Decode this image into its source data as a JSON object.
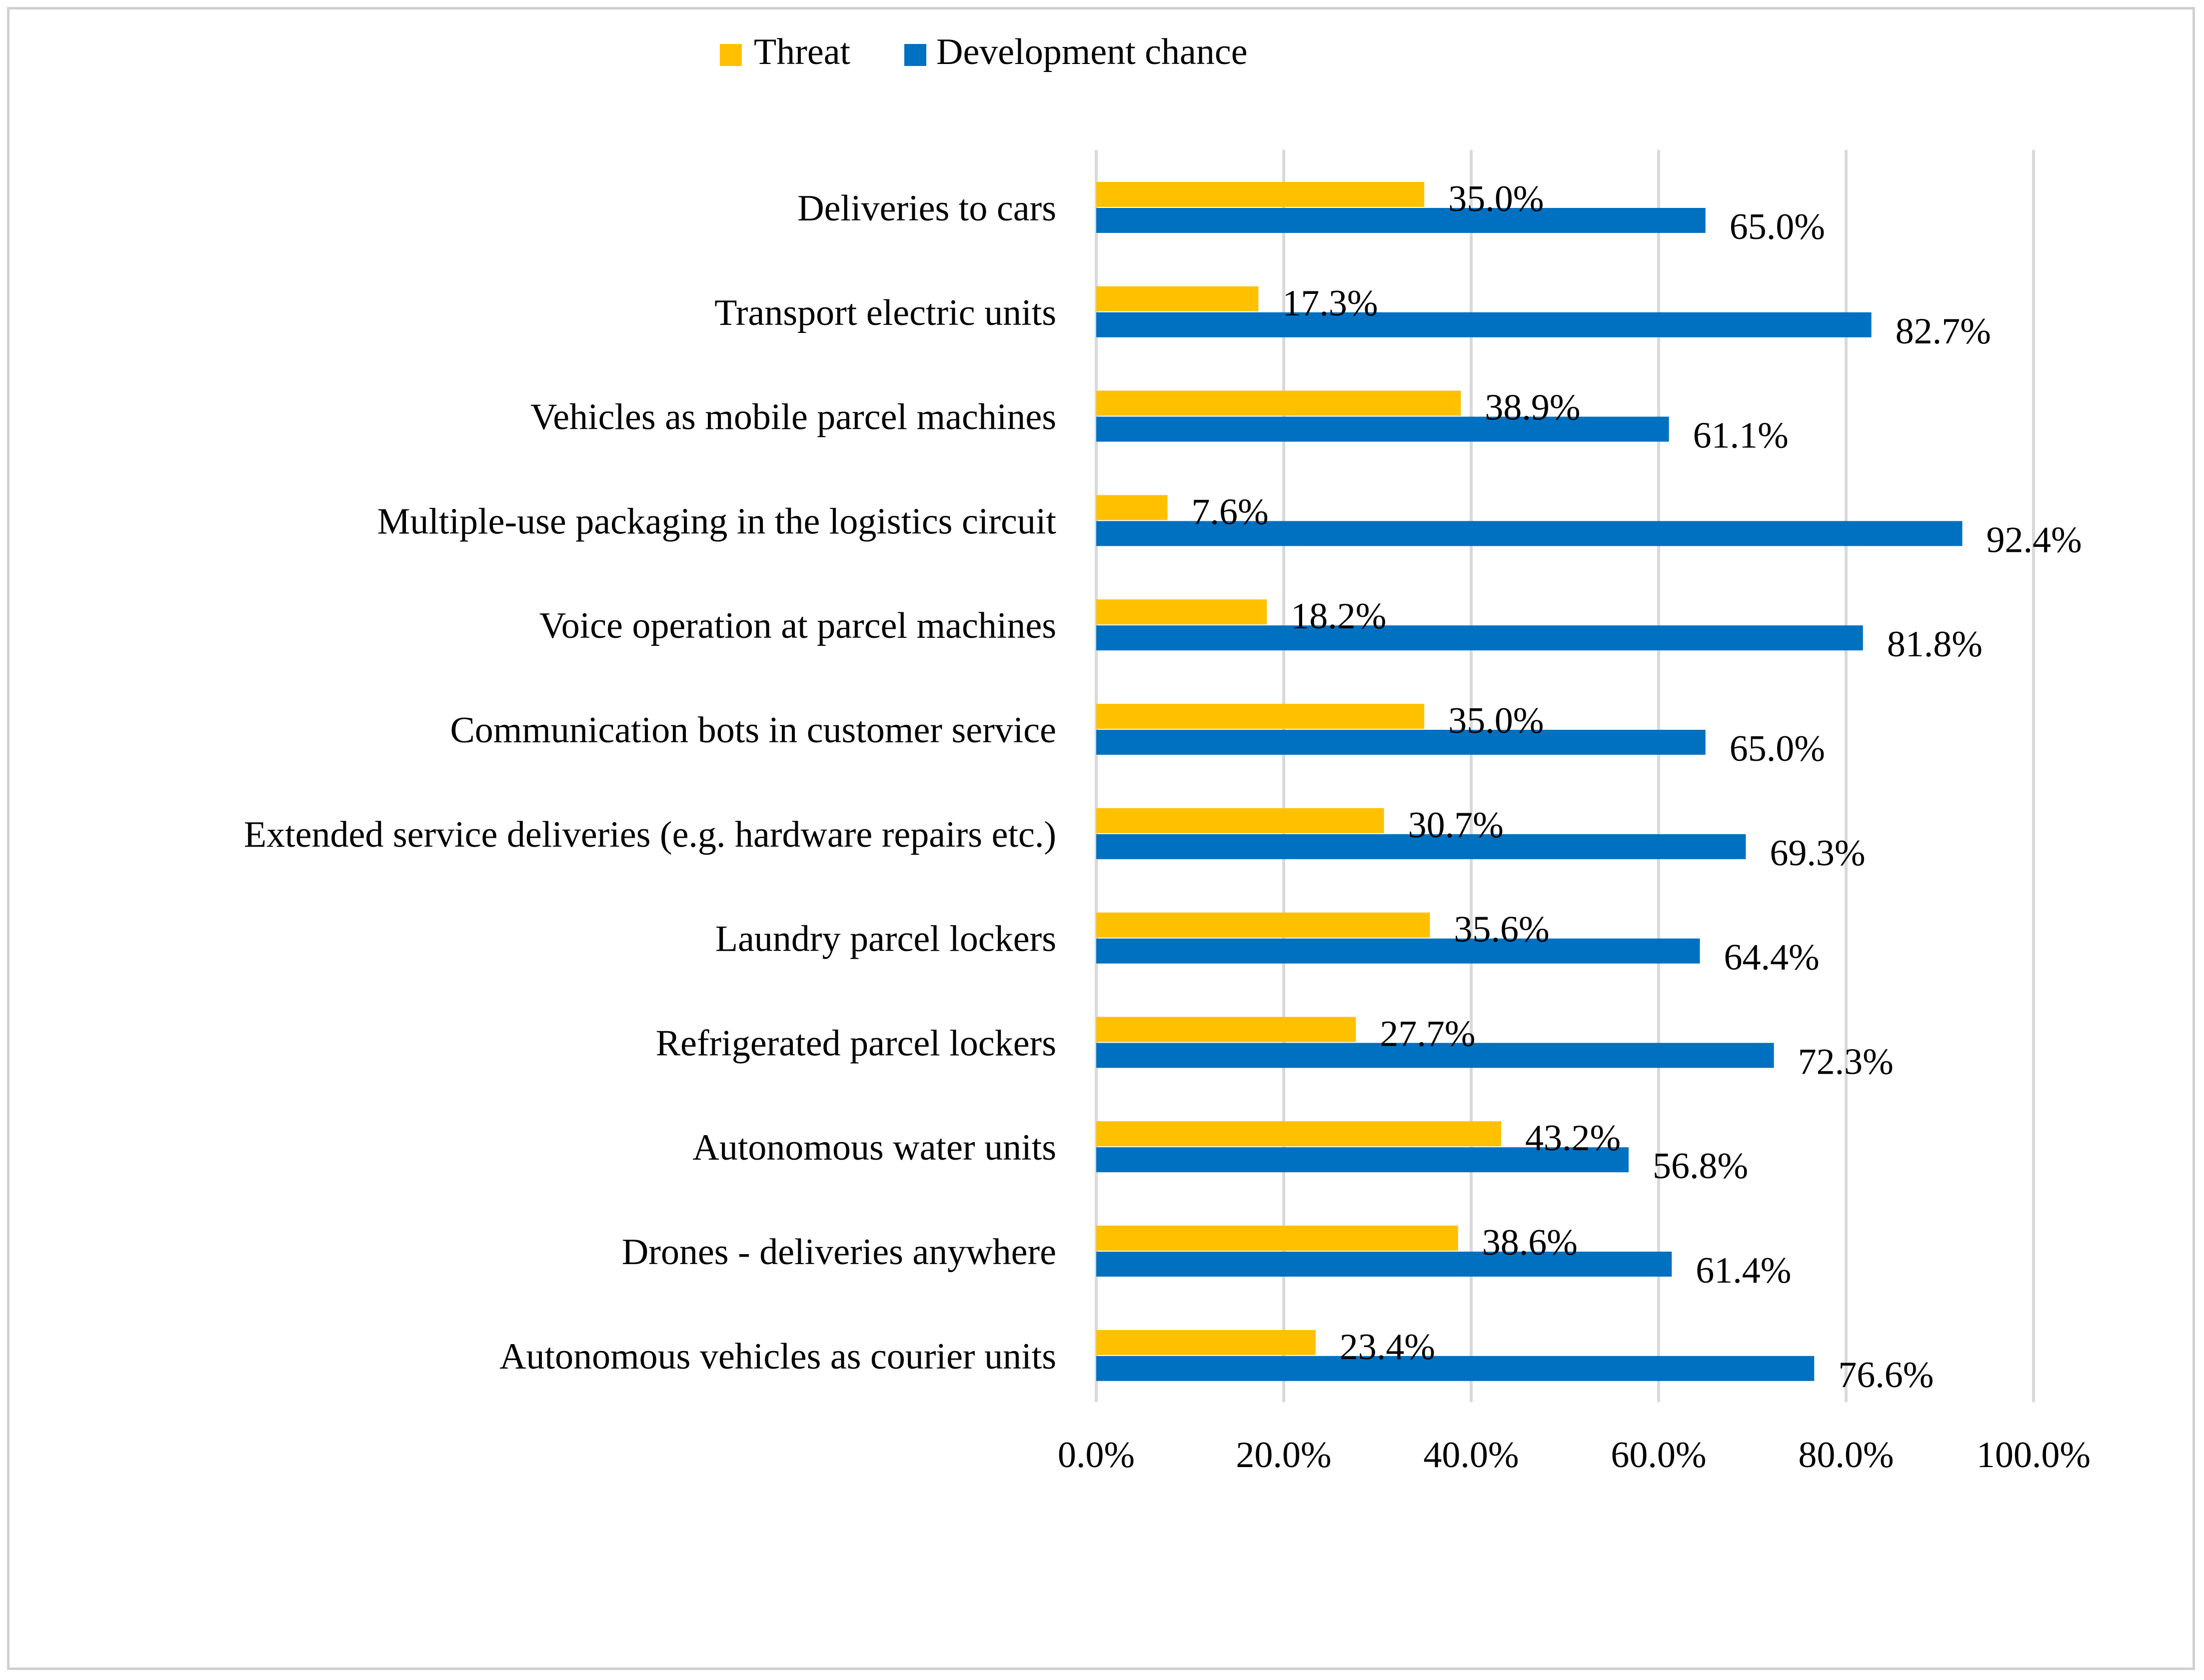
{
  "chart_data": {
    "type": "bar",
    "orientation": "horizontal",
    "title": "",
    "xlabel": "",
    "ylabel": "",
    "xlim": [
      0,
      100
    ],
    "x_ticks": [
      "0.0%",
      "20.0%",
      "40.0%",
      "60.0%",
      "80.0%",
      "100.0%"
    ],
    "x_tick_values": [
      0,
      20,
      40,
      60,
      80,
      100
    ],
    "grid": true,
    "legend_position": "top",
    "categories": [
      "Deliveries to cars",
      "Transport electric units",
      "Vehicles as mobile parcel machines",
      "Multiple-use packaging in the logistics circuit",
      "Voice operation at parcel machines",
      "Communication bots in customer service",
      "Extended service deliveries (e.g. hardware repairs etc.)",
      "Laundry parcel lockers",
      "Refrigerated parcel lockers",
      "Autonomous water units",
      "Drones - deliveries anywhere",
      "Autonomous vehicles as courier units"
    ],
    "series": [
      {
        "name": "Threat",
        "color": "#FFC000",
        "values": [
          35.0,
          17.3,
          38.9,
          7.6,
          18.2,
          35.0,
          30.7,
          35.6,
          27.7,
          43.2,
          38.6,
          23.4
        ],
        "labels": [
          "35.0%",
          "17.3%",
          "38.9%",
          "7.6%",
          "18.2%",
          "35.0%",
          "30.7%",
          "35.6%",
          "27.7%",
          "43.2%",
          "38.6%",
          "23.4%"
        ]
      },
      {
        "name": "Development chance",
        "color": "#0070C0",
        "values": [
          65.0,
          82.7,
          61.1,
          92.4,
          81.8,
          65.0,
          69.3,
          64.4,
          72.3,
          56.8,
          61.4,
          76.6
        ],
        "labels": [
          "65.0%",
          "82.7%",
          "61.1%",
          "92.4%",
          "81.8%",
          "65.0%",
          "69.3%",
          "64.4%",
          "72.3%",
          "56.8%",
          "61.4%",
          "76.6%"
        ]
      }
    ],
    "gridline_color": "#d9d9d9"
  }
}
